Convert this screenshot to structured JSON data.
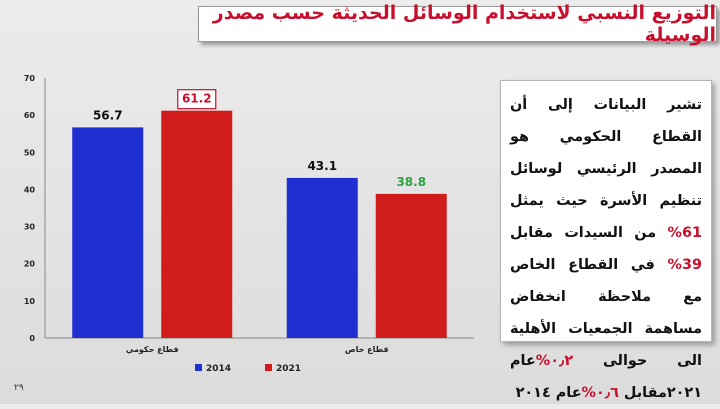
{
  "title": "التوزيع النسبي لاستخدام الوسائل الحديثة حسب مصدر الوسيلة",
  "side_text": {
    "p1": "تشير البيانات إلى أن القطاع الحكومي هو المصدر الرئيسي لوسائل تنظيم الأسرة حيث يمثل ",
    "hl1": "61%",
    "p2": " من السيدات مقابل ",
    "hl2": "39%",
    "p3": " في القطاع الخاص مع ملاحظة انخفاض مساهمة الجمعيات الأهلية الى حوالى ",
    "hl3": "٠٫٢%",
    "p4": "عام ٢٠٢١مقابل ",
    "hl4": "٠٫٦%",
    "p5": "عام ٢٠١٤"
  },
  "page_number": "٢٩",
  "colors": {
    "accent_red": "#c8102e",
    "series_2014": "#1f2fd1",
    "series_2021": "#d11c1c"
  },
  "chart_data": {
    "type": "bar",
    "categories": [
      "قطاع حكومي",
      "قطاع خاص"
    ],
    "series": [
      {
        "name": "2014",
        "values": [
          56.7,
          43.1
        ],
        "color": "#1f2fd1",
        "labels": [
          "56.7",
          "43.1"
        ]
      },
      {
        "name": "2021",
        "values": [
          61.2,
          38.8
        ],
        "color": "#d11c1c",
        "labels": [
          "61.2",
          "38.8"
        ]
      }
    ],
    "ylim": [
      0,
      70
    ],
    "yticks": [
      0,
      10,
      20,
      30,
      40,
      50,
      60,
      70
    ],
    "grid": false,
    "legend": "bottom",
    "label_styles": {
      "2021-0": {
        "color": "#c8102e",
        "boxed": true
      },
      "2021-1": {
        "color": "#2ea043",
        "boxed": false
      }
    }
  }
}
